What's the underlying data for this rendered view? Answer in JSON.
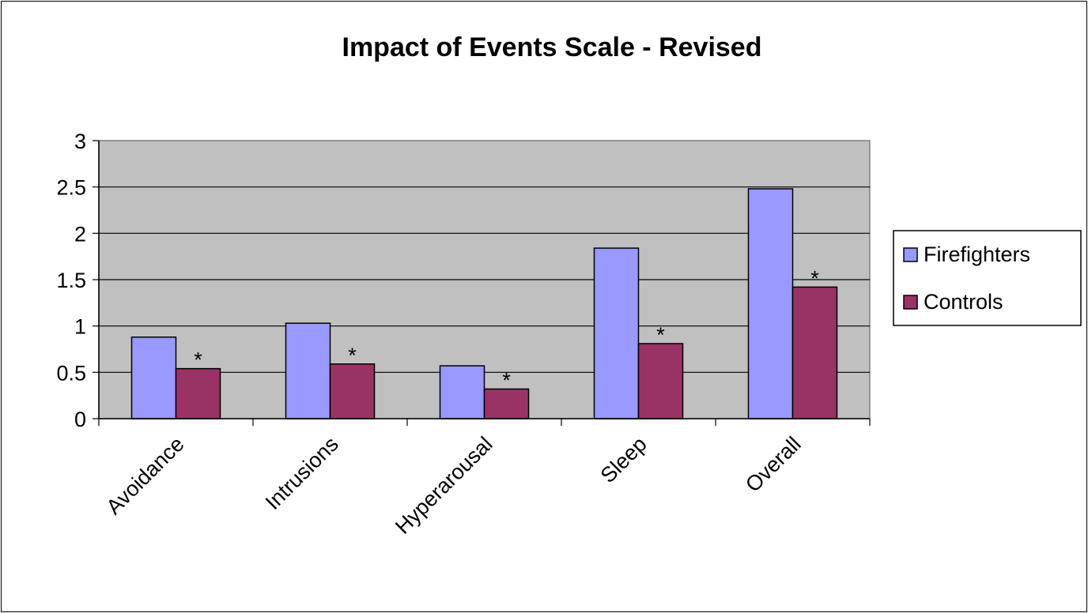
{
  "chart_data": {
    "type": "bar",
    "title": "Impact of Events Scale - Revised",
    "xlabel": "",
    "ylabel": "",
    "categories": [
      "Avoidance",
      "Intrusions",
      "Hyperarousal",
      "Sleep",
      "Overall"
    ],
    "series": [
      {
        "name": "Firefighters",
        "color": "#9999ff",
        "values": [
          0.88,
          1.03,
          0.57,
          1.84,
          2.48
        ]
      },
      {
        "name": "Controls",
        "color": "#993366",
        "values": [
          0.54,
          0.59,
          0.32,
          0.81,
          1.42
        ]
      }
    ],
    "significance_markers": [
      "*",
      "*",
      "*",
      "*",
      "*"
    ],
    "ylim": [
      0,
      3
    ],
    "yticks": [
      "0",
      "0.5",
      "1",
      "1.5",
      "2",
      "2.5",
      "3"
    ],
    "grid": true,
    "plot_background": "#c0c0c0",
    "legend_position": "right"
  }
}
